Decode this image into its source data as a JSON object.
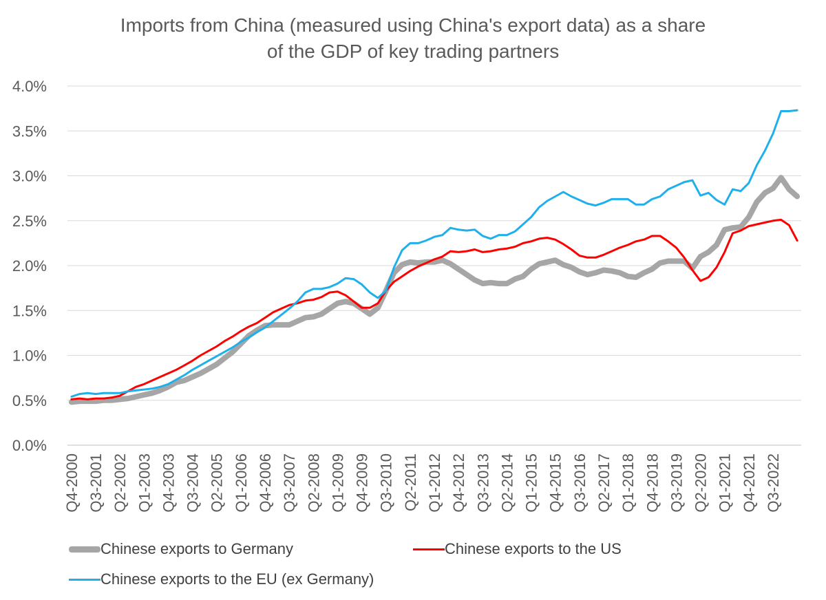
{
  "title_line1": "Imports from China (measured using China's export data) as a share",
  "title_line2": "of the GDP of key trading partners",
  "chart_data": {
    "type": "line",
    "title": "Imports from China (measured using China's export data) as a share of the GDP of key trading partners",
    "xlabel": "",
    "ylabel": "",
    "ylim": [
      0,
      0.04
    ],
    "ytick_labels": [
      "0.0%",
      "0.5%",
      "1.0%",
      "1.5%",
      "2.0%",
      "2.5%",
      "3.0%",
      "3.5%",
      "4.0%"
    ],
    "ytick_values": [
      0,
      0.005,
      0.01,
      0.015,
      0.02,
      0.025,
      0.03,
      0.035,
      0.04
    ],
    "x_start": "Q4-2000",
    "x_end": "Q1-2023",
    "xtick_labels": [
      "Q4-2000",
      "Q3-2001",
      "Q2-2002",
      "Q1-2003",
      "Q4-2003",
      "Q3-2004",
      "Q2-2005",
      "Q1-2006",
      "Q4-2006",
      "Q3-2007",
      "Q2-2008",
      "Q1-2009",
      "Q4-2009",
      "Q3-2010",
      "Q2-2011",
      "Q1-2012",
      "Q4-2012",
      "Q3-2013",
      "Q2-2014",
      "Q1-2015",
      "Q4-2015",
      "Q3-2016",
      "Q2-2017",
      "Q1-2018",
      "Q4-2018",
      "Q3-2019",
      "Q2-2020",
      "Q1-2021",
      "Q4-2021",
      "Q3-2022"
    ],
    "grid": true,
    "legend_position": "bottom",
    "series": [
      {
        "name": "Chinese exports to Germany",
        "color": "#a6a6a6",
        "values": [
          0.0048,
          0.0049,
          0.0049,
          0.0049,
          0.005,
          0.005,
          0.0051,
          0.0052,
          0.0054,
          0.0056,
          0.0058,
          0.0061,
          0.0065,
          0.007,
          0.0072,
          0.0076,
          0.008,
          0.0085,
          0.009,
          0.0097,
          0.0104,
          0.0113,
          0.0122,
          0.0128,
          0.0133,
          0.0134,
          0.0134,
          0.0134,
          0.0138,
          0.0142,
          0.0143,
          0.0146,
          0.0152,
          0.0158,
          0.016,
          0.0158,
          0.0152,
          0.0146,
          0.0153,
          0.0172,
          0.0192,
          0.0201,
          0.0204,
          0.0203,
          0.0204,
          0.0204,
          0.0206,
          0.0202,
          0.0196,
          0.019,
          0.0184,
          0.018,
          0.0181,
          0.018,
          0.018,
          0.0185,
          0.0188,
          0.0196,
          0.0202,
          0.0204,
          0.0206,
          0.0201,
          0.0198,
          0.0193,
          0.019,
          0.0192,
          0.0195,
          0.0194,
          0.0192,
          0.0188,
          0.0187,
          0.0192,
          0.0196,
          0.0203,
          0.0205,
          0.0205,
          0.0205,
          0.0197,
          0.021,
          0.0215,
          0.0223,
          0.024,
          0.0242,
          0.0243,
          0.0254,
          0.0271,
          0.0281,
          0.0286,
          0.0298,
          0.0285,
          0.0277
        ]
      },
      {
        "name": "Chinese exports to the US",
        "color": "#ff0000",
        "values": [
          0.0051,
          0.0052,
          0.0051,
          0.0052,
          0.0052,
          0.0053,
          0.0055,
          0.006,
          0.0065,
          0.0068,
          0.0072,
          0.0076,
          0.008,
          0.0084,
          0.0089,
          0.0094,
          0.01,
          0.0105,
          0.011,
          0.0116,
          0.0121,
          0.0127,
          0.0132,
          0.0136,
          0.0142,
          0.0148,
          0.0152,
          0.0156,
          0.0158,
          0.0161,
          0.0162,
          0.0165,
          0.017,
          0.0171,
          0.0167,
          0.016,
          0.0153,
          0.0153,
          0.0158,
          0.0172,
          0.0182,
          0.0188,
          0.0194,
          0.0199,
          0.0203,
          0.0207,
          0.021,
          0.0216,
          0.0215,
          0.0216,
          0.0218,
          0.0215,
          0.0216,
          0.0218,
          0.0219,
          0.0221,
          0.0225,
          0.0227,
          0.023,
          0.0231,
          0.0229,
          0.0224,
          0.0218,
          0.0211,
          0.0209,
          0.0209,
          0.0212,
          0.0216,
          0.022,
          0.0223,
          0.0227,
          0.0229,
          0.0233,
          0.0233,
          0.0227,
          0.022,
          0.0209,
          0.0195,
          0.0183,
          0.0187,
          0.0198,
          0.0215,
          0.0236,
          0.0239,
          0.0244,
          0.0246,
          0.0248,
          0.025,
          0.0251,
          0.0245,
          0.0228
        ]
      },
      {
        "name": "Chinese exports to the EU (ex Germany)",
        "color": "#1fb0ec",
        "values": [
          0.0054,
          0.0057,
          0.0058,
          0.0057,
          0.0058,
          0.0058,
          0.0058,
          0.006,
          0.0061,
          0.0062,
          0.0063,
          0.0065,
          0.0068,
          0.0073,
          0.0078,
          0.0084,
          0.0089,
          0.0094,
          0.0099,
          0.0104,
          0.0109,
          0.0115,
          0.012,
          0.0126,
          0.0131,
          0.0138,
          0.0145,
          0.0152,
          0.016,
          0.017,
          0.0174,
          0.0174,
          0.0176,
          0.018,
          0.0186,
          0.0185,
          0.0179,
          0.017,
          0.0164,
          0.0172,
          0.0198,
          0.0217,
          0.0225,
          0.0225,
          0.0228,
          0.0232,
          0.0234,
          0.0242,
          0.024,
          0.0239,
          0.024,
          0.0233,
          0.023,
          0.0234,
          0.0234,
          0.0238,
          0.0246,
          0.0254,
          0.0265,
          0.0272,
          0.0277,
          0.0282,
          0.0277,
          0.0273,
          0.0269,
          0.0267,
          0.027,
          0.0274,
          0.0274,
          0.0274,
          0.0268,
          0.0268,
          0.0274,
          0.0277,
          0.0285,
          0.0289,
          0.0293,
          0.0295,
          0.0278,
          0.0281,
          0.0273,
          0.0268,
          0.0285,
          0.0283,
          0.0292,
          0.0312,
          0.0328,
          0.0347,
          0.0372,
          0.0372,
          0.0373
        ]
      }
    ]
  }
}
